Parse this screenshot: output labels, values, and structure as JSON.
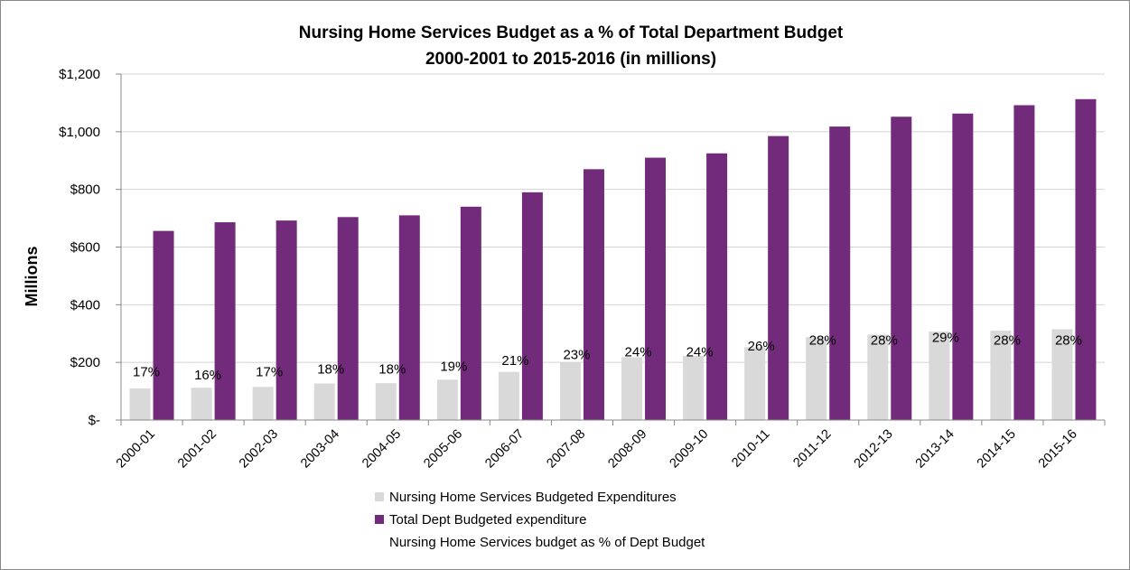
{
  "chart_data": {
    "type": "bar",
    "title": "Nursing Home Services Budget as a % of Total Department Budget",
    "subtitle": "2000-2001 to 2015-2016 (in millions)",
    "ylabel": "Millions",
    "xlabel": "",
    "ylim": [
      0,
      1200
    ],
    "yticks": [
      0,
      200,
      400,
      600,
      800,
      1000,
      1200
    ],
    "ytick_labels": [
      "$-",
      "$200",
      "$400",
      "$600",
      "$800",
      "$1,000",
      "$1,200"
    ],
    "categories": [
      "2000-01",
      "2001-02",
      "2002-03",
      "2003-04",
      "2004-05",
      "2005-06",
      "2006-07",
      "2007-08",
      "2008-09",
      "2009-10",
      "2010-11",
      "2011-12",
      "2012-13",
      "2013-14",
      "2014-15",
      "2015-16"
    ],
    "series": [
      {
        "name": "Nursing Home Services Budgeted Expenditures",
        "color": "#d9d9d9",
        "values": [
          110,
          112,
          115,
          127,
          128,
          140,
          167,
          200,
          218,
          222,
          253,
          288,
          296,
          307,
          310,
          315
        ]
      },
      {
        "name": "Total Dept Budgeted expenditure",
        "color": "#722a7a",
        "values": [
          656,
          686,
          692,
          704,
          710,
          740,
          790,
          870,
          910,
          925,
          985,
          1018,
          1052,
          1063,
          1092,
          1113
        ]
      },
      {
        "name": "Nursing Home Services budget as % of Dept Budget",
        "values": [
          "17%",
          "16%",
          "17%",
          "18%",
          "18%",
          "19%",
          "21%",
          "23%",
          "24%",
          "24%",
          "26%",
          "28%",
          "28%",
          "29%",
          "28%",
          "28%"
        ],
        "percent_values": [
          17,
          16,
          17,
          18,
          18,
          19,
          21,
          23,
          24,
          24,
          26,
          28,
          28,
          29,
          28,
          28
        ]
      }
    ],
    "grid": true,
    "legend_position": "bottom"
  }
}
